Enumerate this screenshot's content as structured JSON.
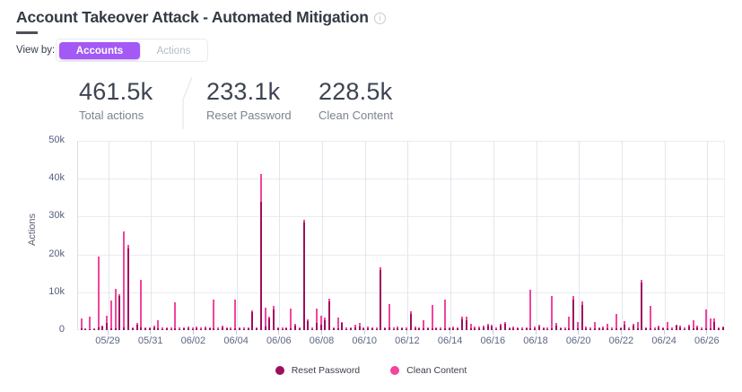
{
  "header": {
    "title": "Account Takeover Attack - Automated Mitigation",
    "info_icon": "info-icon",
    "info_glyph": "i"
  },
  "view_by": {
    "label": "View by:",
    "options": [
      {
        "label": "Accounts",
        "selected": true
      },
      {
        "label": "Actions",
        "selected": false
      }
    ]
  },
  "stats": [
    {
      "value": "461.5k",
      "label": "Total actions"
    },
    {
      "value": "233.1k",
      "label": "Reset Password"
    },
    {
      "value": "228.5k",
      "label": "Clean Content"
    }
  ],
  "colors": {
    "reset_password": "#9e0e5e",
    "clean_content": "#f2459b",
    "accent_purple": "#a259f5"
  },
  "legend": [
    {
      "label": "Reset Password",
      "color": "#9e0e5e"
    },
    {
      "label": "Clean Content",
      "color": "#f2459b"
    }
  ],
  "chart_data": {
    "type": "bar",
    "stacked": true,
    "title": "",
    "xlabel": "",
    "ylabel": "Actions",
    "ylim": [
      0,
      50000
    ],
    "grid": true,
    "legend_position": "bottom",
    "value_unit": "thousands",
    "y_ticks": [
      "0",
      "10k",
      "20k",
      "30k",
      "40k",
      "50k"
    ],
    "x_ticks": [
      "05/29",
      "05/31",
      "06/02",
      "06/04",
      "06/06",
      "06/08",
      "06/10",
      "06/12",
      "06/14",
      "06/16",
      "06/18",
      "06/20",
      "06/22",
      "06/24",
      "06/26"
    ],
    "series_names": [
      "Reset Password",
      "Clean Content"
    ],
    "series_order": "bottom-to-top",
    "bars": [
      [
        0.5,
        2.6
      ],
      [
        0.2,
        0.2
      ],
      [
        0.3,
        3.2
      ],
      [
        0.3,
        0.2
      ],
      [
        0.8,
        18.7
      ],
      [
        1.0,
        0.3
      ],
      [
        2.0,
        1.9
      ],
      [
        0.4,
        7.4
      ],
      [
        0.4,
        10.6
      ],
      [
        9.0,
        0.5
      ],
      [
        0.6,
        25.4
      ],
      [
        21.5,
        1.0
      ],
      [
        0.4,
        0.3
      ],
      [
        1.5,
        0.5
      ],
      [
        0.6,
        12.7
      ],
      [
        0.4,
        0.4
      ],
      [
        0.5,
        0.3
      ],
      [
        0.8,
        0.4
      ],
      [
        0.5,
        2.0
      ],
      [
        0.3,
        0.3
      ],
      [
        0.4,
        0.4
      ],
      [
        0.3,
        0.4
      ],
      [
        0.4,
        7.0
      ],
      [
        0.3,
        0.3
      ],
      [
        0.4,
        0.3
      ],
      [
        0.5,
        0.4
      ],
      [
        0.3,
        0.3
      ],
      [
        0.4,
        0.5
      ],
      [
        0.3,
        0.3
      ],
      [
        0.5,
        0.4
      ],
      [
        0.4,
        0.3
      ],
      [
        0.4,
        7.6
      ],
      [
        0.3,
        0.3
      ],
      [
        0.6,
        0.5
      ],
      [
        0.4,
        0.4
      ],
      [
        0.3,
        0.3
      ],
      [
        0.5,
        7.5
      ],
      [
        0.4,
        0.3
      ],
      [
        0.3,
        0.4
      ],
      [
        0.4,
        0.3
      ],
      [
        4.7,
        0.5
      ],
      [
        0.4,
        0.4
      ],
      [
        33.8,
        7.5
      ],
      [
        1.0,
        5.0
      ],
      [
        3.0,
        0.5
      ],
      [
        5.5,
        0.8
      ],
      [
        0.4,
        0.3
      ],
      [
        0.3,
        0.4
      ],
      [
        0.4,
        0.3
      ],
      [
        0.5,
        5.2
      ],
      [
        1.2,
        0.4
      ],
      [
        0.4,
        0.3
      ],
      [
        28.4,
        0.8
      ],
      [
        2.4,
        0.4
      ],
      [
        0.3,
        0.4
      ],
      [
        1.8,
        4.0
      ],
      [
        1.5,
        2.2
      ],
      [
        2.6,
        0.8
      ],
      [
        7.6,
        0.6
      ],
      [
        0.4,
        0.3
      ],
      [
        0.4,
        3.0
      ],
      [
        1.8,
        0.4
      ],
      [
        0.3,
        0.3
      ],
      [
        0.4,
        0.4
      ],
      [
        0.8,
        0.7
      ],
      [
        1.0,
        1.0
      ],
      [
        0.4,
        0.3
      ],
      [
        0.5,
        0.4
      ],
      [
        0.4,
        0.4
      ],
      [
        0.3,
        0.3
      ],
      [
        15.8,
        0.8
      ],
      [
        0.4,
        0.3
      ],
      [
        0.6,
        6.2
      ],
      [
        0.3,
        0.3
      ],
      [
        0.5,
        0.5
      ],
      [
        0.4,
        0.3
      ],
      [
        0.3,
        0.4
      ],
      [
        4.2,
        0.8
      ],
      [
        0.5,
        0.4
      ],
      [
        0.4,
        0.4
      ],
      [
        0.4,
        2.1
      ],
      [
        0.4,
        0.4
      ],
      [
        0.5,
        6.2
      ],
      [
        0.4,
        0.4
      ],
      [
        0.3,
        0.3
      ],
      [
        0.5,
        7.5
      ],
      [
        0.4,
        0.4
      ],
      [
        0.5,
        0.5
      ],
      [
        0.4,
        0.4
      ],
      [
        2.8,
        0.7
      ],
      [
        2.6,
        0.9
      ],
      [
        0.4,
        1.3
      ],
      [
        0.5,
        0.4
      ],
      [
        0.5,
        0.5
      ],
      [
        0.6,
        0.6
      ],
      [
        1.3,
        0.3
      ],
      [
        0.9,
        0.6
      ],
      [
        0.3,
        0.3
      ],
      [
        1.2,
        0.5
      ],
      [
        1.7,
        0.4
      ],
      [
        0.4,
        0.3
      ],
      [
        0.5,
        0.4
      ],
      [
        0.4,
        0.4
      ],
      [
        0.3,
        0.3
      ],
      [
        0.4,
        0.4
      ],
      [
        0.5,
        10.2
      ],
      [
        0.5,
        0.4
      ],
      [
        1.0,
        0.5
      ],
      [
        0.4,
        0.4
      ],
      [
        0.3,
        0.3
      ],
      [
        0.5,
        8.5
      ],
      [
        1.2,
        0.6
      ],
      [
        0.4,
        0.4
      ],
      [
        0.3,
        0.3
      ],
      [
        0.4,
        3.1
      ],
      [
        8.0,
        1.0
      ],
      [
        0.4,
        1.8
      ],
      [
        6.6,
        0.9
      ],
      [
        0.5,
        0.4
      ],
      [
        0.3,
        0.3
      ],
      [
        0.4,
        1.8
      ],
      [
        0.4,
        0.4
      ],
      [
        0.5,
        0.4
      ],
      [
        0.4,
        1.2
      ],
      [
        0.3,
        0.3
      ],
      [
        0.5,
        3.8
      ],
      [
        0.4,
        0.3
      ],
      [
        1.4,
        1.0
      ],
      [
        0.3,
        0.3
      ],
      [
        1.2,
        0.4
      ],
      [
        0.5,
        1.6
      ],
      [
        12.5,
        0.7
      ],
      [
        0.4,
        0.3
      ],
      [
        0.5,
        5.9
      ],
      [
        0.3,
        0.3
      ],
      [
        0.8,
        0.4
      ],
      [
        0.4,
        0.3
      ],
      [
        0.4,
        1.7
      ],
      [
        0.3,
        0.3
      ],
      [
        1.1,
        0.4
      ],
      [
        0.6,
        0.5
      ],
      [
        0.3,
        0.3
      ],
      [
        1.0,
        0.5
      ],
      [
        0.4,
        2.2
      ],
      [
        0.6,
        0.5
      ],
      [
        0.3,
        0.3
      ],
      [
        0.4,
        5.1
      ],
      [
        0.5,
        2.6
      ],
      [
        2.2,
        0.9
      ],
      [
        0.4,
        0.4
      ],
      [
        0.6,
        0.3
      ]
    ]
  }
}
